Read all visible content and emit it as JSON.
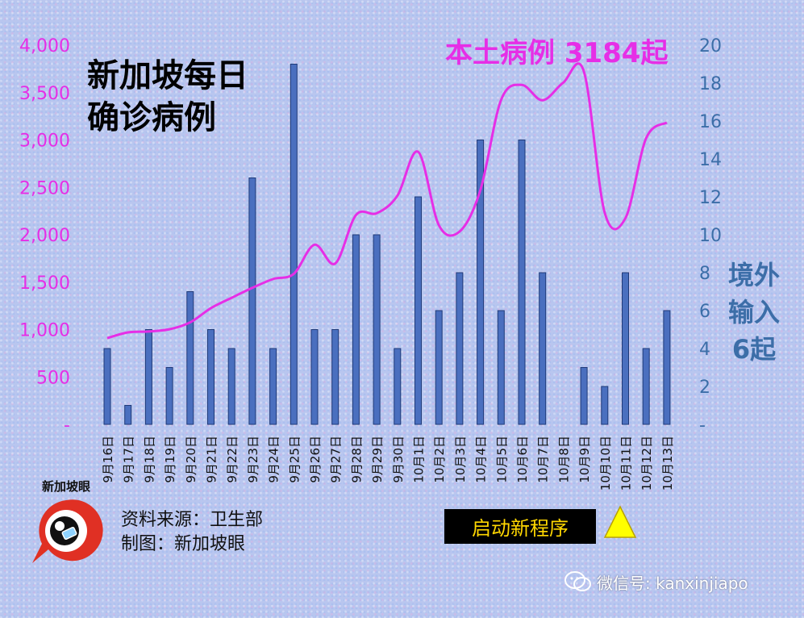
{
  "header": {
    "title_line1": "新加坡每日",
    "title_line2": "确诊病例"
  },
  "annotations": {
    "local_cases": "本土病例 3184起",
    "imported_line1": "境外",
    "imported_line2": "输入",
    "imported_line3": "6起",
    "source": "资料来源：卫生部",
    "made_by": "制图：新加坡眼",
    "new_program": "启动新程序",
    "logo_text": "新加坡眼",
    "wechat": "微信号: kanxinjiapo"
  },
  "colors": {
    "local_line": "#e62ee6",
    "bar_fill": "#4a6fbf",
    "bar_stroke": "#1f3a78",
    "right_axis": "#3c6ea8",
    "left_axis": "#e62ee6"
  },
  "chart_data": {
    "type": "bar",
    "categories": [
      "9月16日",
      "9月17日",
      "9月18日",
      "9月19日",
      "9月20日",
      "9月21日",
      "9月22日",
      "9月23日",
      "9月24日",
      "9月25日",
      "9月26日",
      "9月27日",
      "9月28日",
      "9月29日",
      "9月30日",
      "10月1日",
      "10月2日",
      "10月3日",
      "10月4日",
      "10月5日",
      "10月6日",
      "10月7日",
      "10月8日",
      "10月9日",
      "10月10日",
      "10月11日",
      "10月12日",
      "10月13日"
    ],
    "series": [
      {
        "type": "line",
        "axis": "left",
        "values": [
          910,
          970,
          980,
          1003,
          1076,
          1226,
          1335,
          1440,
          1533,
          1588,
          1895,
          1697,
          2208,
          2227,
          2412,
          2875,
          2102,
          2034,
          2469,
          3421,
          3581,
          3419,
          3604,
          3721,
          2235,
          2174,
          3018,
          3184
        ]
      },
      {
        "type": "bar",
        "axis": "right",
        "values": [
          4,
          1,
          5,
          3,
          7,
          5,
          4,
          13,
          4,
          19,
          5,
          5,
          10,
          10,
          4,
          12,
          6,
          8,
          15,
          6,
          15,
          8,
          0,
          3,
          2,
          8,
          4,
          6
        ]
      }
    ],
    "left_axis": {
      "min": 0,
      "max": 4000,
      "ticks": [
        0,
        500,
        1000,
        1500,
        2000,
        2500,
        3000,
        3500,
        4000
      ],
      "tick_labels": [
        "-",
        "500",
        "1,000",
        "1,500",
        "2,000",
        "2,500",
        "3,000",
        "3,500",
        "4,000"
      ]
    },
    "right_axis": {
      "min": 0,
      "max": 20,
      "ticks": [
        0,
        2,
        4,
        6,
        8,
        10,
        12,
        14,
        16,
        18,
        20
      ],
      "tick_labels": [
        "-",
        "2",
        "4",
        "6",
        "8",
        "10",
        "12",
        "14",
        "16",
        "18",
        "20"
      ]
    },
    "grid": false
  }
}
